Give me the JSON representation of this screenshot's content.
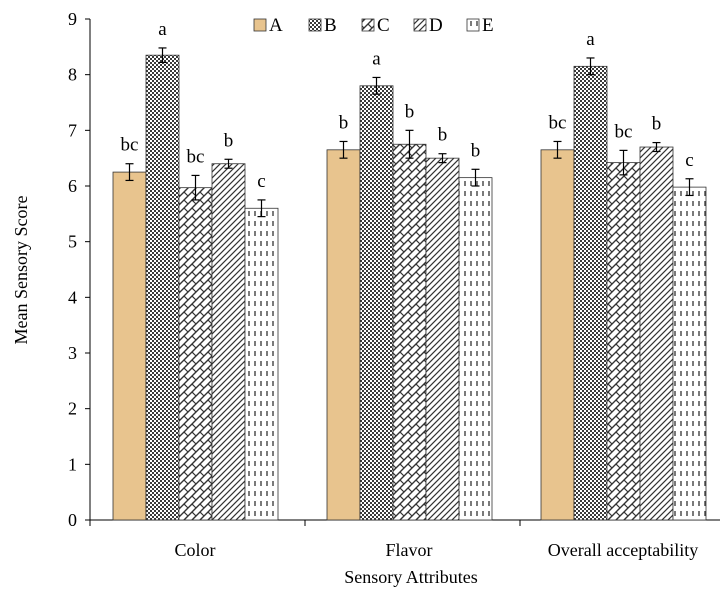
{
  "chart_data": {
    "type": "bar",
    "xlabel": "Sensory Attributes",
    "ylabel": "Mean Sensory Score",
    "ylim": [
      0,
      9
    ],
    "yticks": [
      0,
      1,
      2,
      3,
      4,
      5,
      6,
      7,
      8,
      9
    ],
    "categories": [
      "Color",
      "Flavor",
      "Overall acceptability"
    ],
    "legend": "top",
    "grid": false,
    "series": [
      {
        "name": "A",
        "values": [
          6.25,
          6.65,
          6.65
        ],
        "errors": [
          0.15,
          0.15,
          0.15
        ],
        "labels": [
          "bc",
          "b",
          "bc"
        ],
        "pattern": "solid",
        "color": "#E8C48E"
      },
      {
        "name": "B",
        "values": [
          8.35,
          7.8,
          8.15
        ],
        "errors": [
          0.13,
          0.15,
          0.15
        ],
        "labels": [
          "a",
          "a",
          "a"
        ],
        "pattern": "dots",
        "color": "#555555"
      },
      {
        "name": "C",
        "values": [
          5.97,
          6.75,
          6.42
        ],
        "errors": [
          0.22,
          0.25,
          0.22
        ],
        "labels": [
          "bc",
          "b",
          "bc"
        ],
        "pattern": "weave",
        "color": "#444444"
      },
      {
        "name": "D",
        "values": [
          6.4,
          6.5,
          6.7
        ],
        "errors": [
          0.08,
          0.08,
          0.08
        ],
        "labels": [
          "b",
          "b",
          "b"
        ],
        "pattern": "slash",
        "color": "#444444"
      },
      {
        "name": "E",
        "values": [
          5.6,
          6.15,
          5.98
        ],
        "errors": [
          0.15,
          0.15,
          0.15
        ],
        "labels": [
          "c",
          "b",
          "c"
        ],
        "pattern": "dash",
        "color": "#333333"
      }
    ]
  }
}
